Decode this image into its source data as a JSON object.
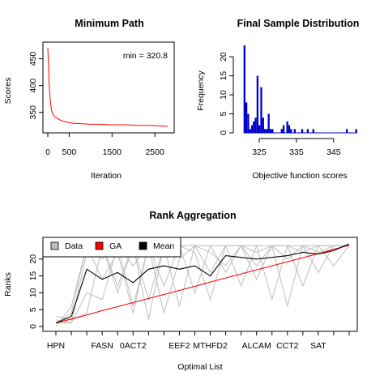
{
  "chart_data": [
    {
      "type": "line",
      "title": "Minimum Path",
      "xlabel": "Iteration",
      "ylabel": "Scores",
      "annotation": "min = 320.8",
      "xlim": [
        0,
        2800
      ],
      "ylim": [
        318,
        475
      ],
      "xticks": [
        0,
        500,
        1500,
        2500
      ],
      "yticks": [
        350,
        400,
        450
      ],
      "color": "#ff0000",
      "series": [
        {
          "x": [
            0,
            15,
            30,
            45,
            60,
            80,
            100,
            130,
            160,
            200,
            250,
            300,
            400,
            500,
            600,
            800,
            1000,
            1200,
            1500,
            1800,
            2100,
            2400,
            2600,
            2800
          ],
          "values": [
            470,
            440,
            405,
            385,
            370,
            358,
            350,
            345,
            342,
            340,
            338,
            335,
            333,
            331,
            330,
            329,
            328,
            328,
            327,
            327,
            326,
            326,
            325,
            324
          ]
        }
      ]
    },
    {
      "type": "bar",
      "title": "Final Sample Distribution",
      "xlabel": "Objective function scores",
      "ylabel": "Frequency",
      "xlim": [
        320,
        352
      ],
      "ylim": [
        0,
        23
      ],
      "xticks": [
        325,
        335,
        345
      ],
      "yticks": [
        0,
        5,
        10,
        15,
        20
      ],
      "color": "#0000cd",
      "bin_width": 0.5,
      "bins": [
        320.8,
        321.3,
        321.8,
        322.3,
        322.8,
        323.3,
        323.8,
        324.3,
        324.8,
        325.3,
        325.8,
        326.3,
        326.8,
        327.3,
        327.8,
        328.3,
        330.8,
        331.3,
        332.3,
        332.8,
        333.3,
        334.3,
        336.3,
        337.8,
        339.3,
        348.3,
        350.8
      ],
      "values": [
        23,
        8,
        5,
        1,
        2,
        3,
        4,
        15,
        2,
        12,
        4,
        1,
        1,
        5,
        1,
        1,
        1,
        2,
        3,
        2,
        1,
        1,
        1,
        1,
        1,
        1,
        1
      ]
    },
    {
      "type": "line",
      "title": "Rank Aggregation",
      "xlabel": "Optimal List",
      "ylabel": "Ranks",
      "categories": [
        "HPN",
        "",
        "",
        "FASN",
        "",
        "0ACT2",
        "",
        "",
        "EEF2",
        "",
        "MTHFD2",
        "",
        "",
        "ALCAM",
        "",
        "CCT2",
        "",
        "SAT",
        "",
        ""
      ],
      "xtick_labels": [
        "HPN",
        "FASN",
        "0ACT2",
        "EEF2",
        "MTHFD2",
        "ALCAM",
        "CCT2",
        "SAT"
      ],
      "xtick_positions": [
        1,
        4,
        6,
        9,
        11,
        14,
        16,
        18
      ],
      "yticks": [
        0,
        5,
        10,
        15,
        20
      ],
      "ylim": [
        0,
        25
      ],
      "legend": {
        "placement": "top-left",
        "entries": [
          {
            "name": "Data",
            "color": "#bebebe"
          },
          {
            "name": "GA",
            "color": "#ff0000"
          },
          {
            "name": "Mean",
            "color": "#000000"
          }
        ]
      },
      "series": [
        {
          "name": "Mean",
          "color": "#000000",
          "values": [
            1,
            3,
            17,
            14,
            16,
            13,
            17,
            18,
            17,
            18,
            15,
            21,
            20.5,
            20,
            20.5,
            21,
            22,
            21.5,
            22.5,
            24.5
          ]
        },
        {
          "name": "GA",
          "color": "#ff0000",
          "values": [
            1,
            2.2,
            3.4,
            4.7,
            5.9,
            7.1,
            8.3,
            9.5,
            10.7,
            11.9,
            13.2,
            14.4,
            15.6,
            16.8,
            18,
            19.2,
            20.4,
            21.6,
            22.9,
            24.1
          ]
        },
        {
          "name": "Data",
          "color": "#bebebe",
          "values": [
            1,
            4,
            24,
            20,
            24,
            18,
            24,
            22,
            24,
            22,
            8,
            24,
            24,
            14,
            24,
            20,
            24,
            16,
            24,
            24
          ]
        },
        {
          "name": "Data",
          "color": "#bebebe",
          "values": [
            2,
            1,
            10,
            8,
            24,
            6,
            24,
            4,
            20,
            24,
            22,
            18,
            24,
            24,
            8,
            24,
            24,
            22,
            24,
            24
          ]
        },
        {
          "name": "Data",
          "color": "#bebebe",
          "values": [
            3,
            2,
            4,
            24,
            12,
            24,
            2,
            24,
            24,
            10,
            24,
            24,
            12,
            24,
            24,
            6,
            24,
            24,
            18,
            24
          ]
        },
        {
          "name": "Data",
          "color": "#bebebe",
          "values": [
            1,
            1,
            22,
            24,
            10,
            24,
            8,
            24,
            6,
            24,
            24,
            16,
            24,
            18,
            24,
            24,
            12,
            24,
            24,
            24
          ]
        },
        {
          "name": "Data",
          "color": "#bebebe",
          "values": [
            0,
            6,
            24,
            14,
            22,
            4,
            24,
            12,
            24,
            24,
            16,
            24,
            24,
            22,
            24,
            24,
            22,
            24,
            24,
            24
          ]
        }
      ]
    }
  ]
}
